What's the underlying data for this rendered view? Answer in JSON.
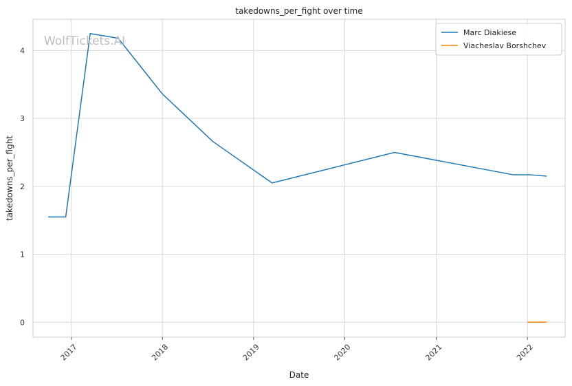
{
  "chart_data": {
    "type": "line",
    "title": "takedowns_per_fight over time",
    "xlabel": "Date",
    "ylabel": "takedowns_per_fight",
    "watermark": "WolfTickets.AI",
    "x_ticks": [
      "2017",
      "2018",
      "2019",
      "2020",
      "2021",
      "2022"
    ],
    "x_range": [
      "2016-08-01",
      "2022-06-01"
    ],
    "y_ticks": [
      "0",
      "1",
      "2",
      "3",
      "4"
    ],
    "ylim": [
      -0.22,
      4.46
    ],
    "grid": true,
    "legend_position": "top-right",
    "series": [
      {
        "name": "Marc Diakiese",
        "color": "#1f77b4",
        "x": [
          "2016-10-01",
          "2016-12-10",
          "2017-03-18",
          "2017-07-08",
          "2018-01-01",
          "2018-07-22",
          "2019-03-16",
          "2020-07-18",
          "2021-11-06",
          "2022-01-15",
          "2022-03-19"
        ],
        "y": [
          1.55,
          1.55,
          4.25,
          4.18,
          3.36,
          2.66,
          2.05,
          2.5,
          2.17,
          2.17,
          2.15
        ]
      },
      {
        "name": "Viacheslav Borshchev",
        "color": "#ff7f0e",
        "x": [
          "2022-01-01",
          "2022-03-19"
        ],
        "y": [
          0.0,
          0.0
        ]
      }
    ]
  }
}
